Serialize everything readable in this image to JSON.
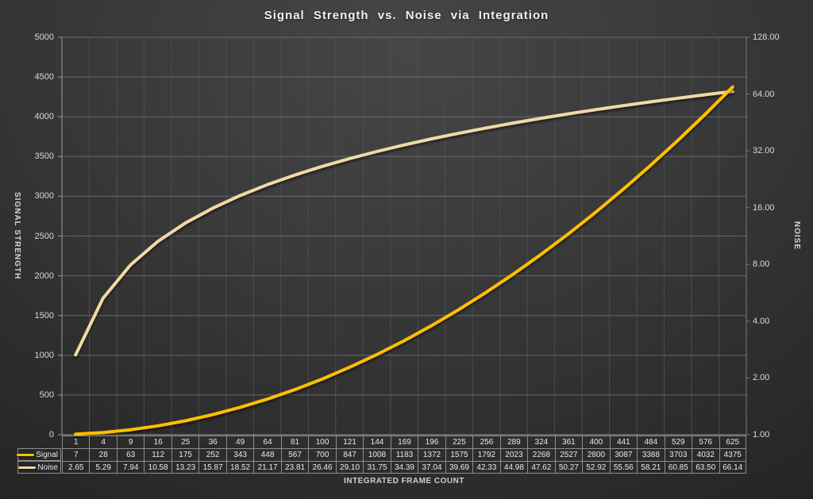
{
  "title": "Signal Strength vs. Noise via Integration",
  "colors": {
    "signal": "#FFC000",
    "noise": "#F1D8A6",
    "grid_major": "#787878",
    "grid_minor": "#4f4f4f",
    "axis_line": "#9a9a9a",
    "text": "#d9d9d9"
  },
  "chart_data": {
    "type": "line",
    "x": [
      1,
      4,
      9,
      16,
      25,
      36,
      49,
      64,
      81,
      100,
      121,
      144,
      169,
      196,
      225,
      256,
      289,
      324,
      361,
      400,
      441,
      484,
      529,
      576,
      625
    ],
    "series": [
      {
        "name": "Signal",
        "axis": "left",
        "color": "#FFC000",
        "values": [
          7,
          28,
          63,
          112,
          175,
          252,
          343,
          448,
          567,
          700,
          847,
          1008,
          1183,
          1372,
          1575,
          1792,
          2023,
          2268,
          2527,
          2800,
          3087,
          3388,
          3703,
          4032,
          4375
        ],
        "labels": [
          "7",
          "28",
          "63",
          "112",
          "175",
          "252",
          "343",
          "448",
          "567",
          "700",
          "847",
          "1008",
          "1183",
          "1372",
          "1575",
          "1792",
          "2023",
          "2268",
          "2527",
          "2800",
          "3087",
          "3388",
          "3703",
          "4032",
          "4375"
        ]
      },
      {
        "name": "Noise",
        "axis": "right",
        "color": "#F1D8A6",
        "values": [
          2.65,
          5.29,
          7.94,
          10.58,
          13.23,
          15.87,
          18.52,
          21.17,
          23.81,
          26.46,
          29.1,
          31.75,
          34.39,
          37.04,
          39.69,
          42.33,
          44.98,
          47.62,
          50.27,
          52.92,
          55.56,
          58.21,
          60.85,
          63.5,
          66.14
        ],
        "labels": [
          "2.65",
          "5.29",
          "7.94",
          "10.58",
          "13.23",
          "15.87",
          "18.52",
          "21.17",
          "23.81",
          "26.46",
          "29.10",
          "31.75",
          "34.39",
          "37.04",
          "39.69",
          "42.33",
          "44.98",
          "47.62",
          "50.27",
          "52.92",
          "55.56",
          "58.21",
          "60.85",
          "63.50",
          "66.14"
        ]
      }
    ],
    "title": "Signal Strength vs. Noise via Integration",
    "xlabel": "INTEGRATED FRAME COUNT",
    "left_axis": {
      "label": "SIGNAL STRENGTH",
      "range": [
        0,
        5000
      ],
      "scale": "linear",
      "tick_labels": [
        "5000",
        "4500",
        "4000",
        "3500",
        "3000",
        "2500",
        "2000",
        "1500",
        "1000",
        "500",
        "0"
      ]
    },
    "right_axis": {
      "label": "NOISE",
      "range": [
        1,
        128
      ],
      "scale": "log2",
      "tick_labels": [
        "128.00",
        "64.00",
        "32.00",
        "16.00",
        "8.00",
        "4.00",
        "2.00",
        "1.00"
      ]
    },
    "grid": true,
    "legend_position": "table-left",
    "data_table": true
  }
}
